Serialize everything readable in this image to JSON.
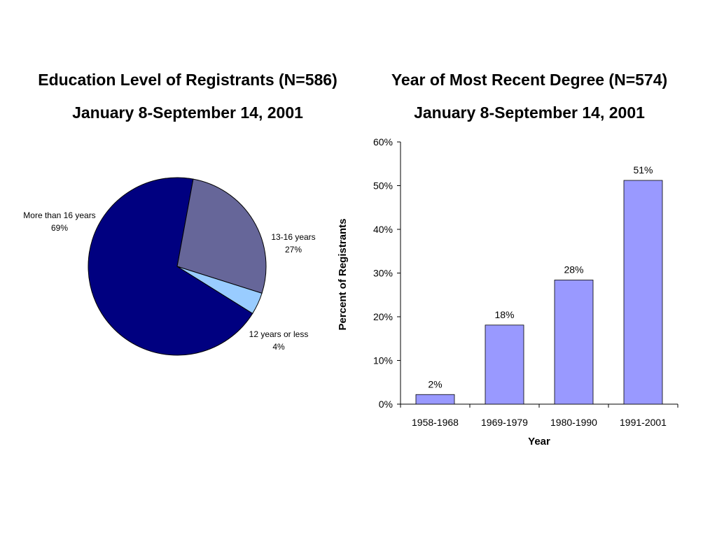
{
  "chart_data": [
    {
      "type": "pie",
      "title": "Education Level of Registrants (N=586)",
      "subtitle": "January 8-September 14, 2001",
      "slices": [
        {
          "label": "More than 16 years",
          "value": 69,
          "value_label": "69%",
          "color": "#000080"
        },
        {
          "label": "13-16 years",
          "value": 27,
          "value_label": "27%",
          "color": "#666699"
        },
        {
          "label": "12 years or less",
          "value": 4,
          "value_label": "4%",
          "color": "#99ccff"
        }
      ]
    },
    {
      "type": "bar",
      "title": "Year of Most Recent Degree  (N=574)",
      "subtitle": "January 8-September 14, 2001",
      "xlabel": "Year",
      "ylabel": "Percent of Registrants",
      "categories": [
        "1958-1968",
        "1969-1979",
        "1980-1990",
        "1991-2001"
      ],
      "values": [
        2.2,
        18.1,
        28.4,
        51.2
      ],
      "value_labels": [
        "2%",
        "18%",
        "28%",
        "51%"
      ],
      "ylim": [
        0,
        60
      ],
      "yticks": [
        "0%",
        "10%",
        "20%",
        "30%",
        "40%",
        "50%",
        "60%"
      ],
      "bar_color": "#9999ff",
      "grid": false
    }
  ]
}
